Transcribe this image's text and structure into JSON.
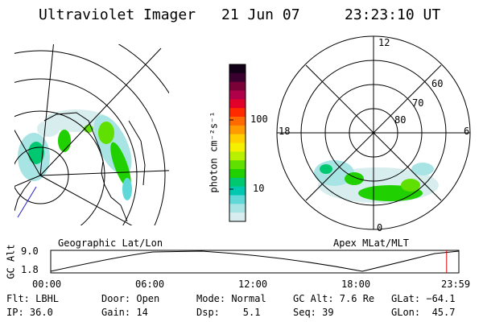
{
  "header": {
    "title": "Ultraviolet Imager",
    "date": "21 Jun 07",
    "time": "23:23:10 UT"
  },
  "colorbar": {
    "unit_label": "photon cm⁻²s⁻¹",
    "ticks": [
      "100",
      "10"
    ],
    "colors": [
      "#120018",
      "#3a0030",
      "#7a0038",
      "#b0004a",
      "#e0002a",
      "#ff2a00",
      "#ff6a00",
      "#ff9a00",
      "#ffcf00",
      "#f4f000",
      "#b8f000",
      "#60e000",
      "#20d000",
      "#00c870",
      "#00c8b0",
      "#60d8d8",
      "#a8e4e4",
      "#d8eeee"
    ]
  },
  "left_map": {
    "caption": "Geographic Lat/Lon"
  },
  "right_map": {
    "caption": "Apex MLat/MLT",
    "mlt_labels": {
      "top": "12",
      "left": "18",
      "right": "6",
      "bottom": "0"
    },
    "lat_labels": [
      "60",
      "70",
      "80"
    ]
  },
  "alt_plot": {
    "ylabel": "GC Alt",
    "yticks": [
      "9.0",
      "1.8"
    ],
    "xticks": [
      "00:00",
      "06:00",
      "12:00",
      "18:00",
      "23:59"
    ],
    "current_marker_fraction": 0.97,
    "marker_color": "#dd0000"
  },
  "info": {
    "row1": {
      "flt": "Flt: LBHL",
      "door": "Door: Open",
      "mode": "Mode: Normal",
      "gcalt": "GC Alt: 7.6 Re",
      "glat": "GLat: −64.1"
    },
    "row2": {
      "ip": "IP: 36.0",
      "gain": "Gain: 14",
      "dsp": "Dsp:    5.1",
      "seq": "Seq: 39",
      "glon": "GLon:  45.7"
    }
  }
}
